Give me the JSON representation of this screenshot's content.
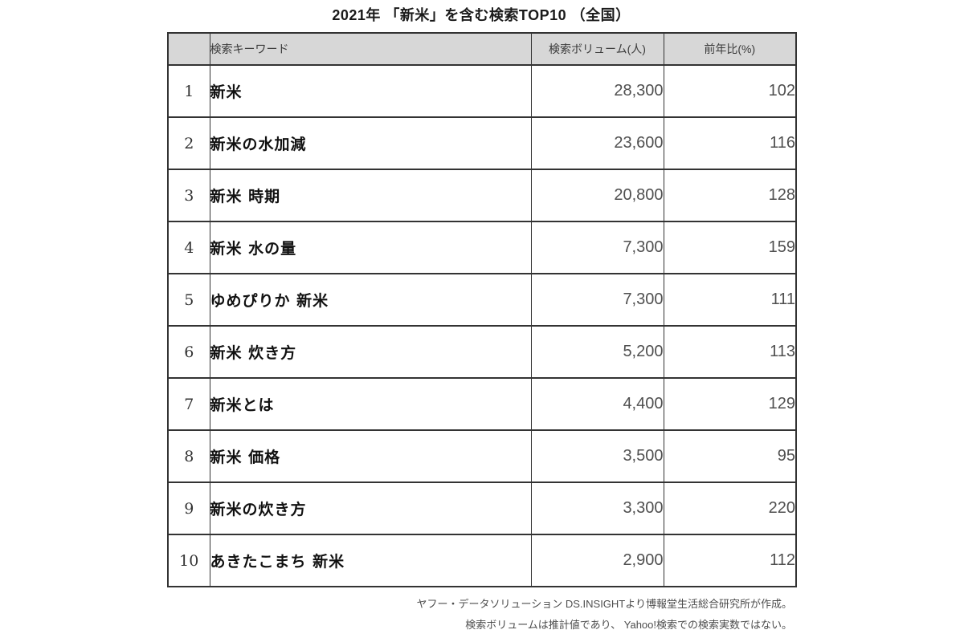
{
  "title": "2021年 「新米」を含む検索TOP10 （全国）",
  "table": {
    "headers": {
      "rank": "",
      "keyword": "検索キーワード",
      "volume": "検索ボリューム(人)",
      "yoy": "前年比(%)"
    },
    "rows": [
      {
        "rank": "1",
        "keyword": "新米",
        "volume": "28,300",
        "yoy": "102"
      },
      {
        "rank": "2",
        "keyword": "新米の水加減",
        "volume": "23,600",
        "yoy": "116"
      },
      {
        "rank": "3",
        "keyword": "新米 時期",
        "volume": "20,800",
        "yoy": "128"
      },
      {
        "rank": "4",
        "keyword": "新米 水の量",
        "volume": "7,300",
        "yoy": "159"
      },
      {
        "rank": "5",
        "keyword": "ゆめぴりか 新米",
        "volume": "7,300",
        "yoy": "111"
      },
      {
        "rank": "6",
        "keyword": "新米 炊き方",
        "volume": "5,200",
        "yoy": "113"
      },
      {
        "rank": "7",
        "keyword": "新米とは",
        "volume": "4,400",
        "yoy": "129"
      },
      {
        "rank": "8",
        "keyword": "新米 価格",
        "volume": "3,500",
        "yoy": "95"
      },
      {
        "rank": "9",
        "keyword": "新米の炊き方",
        "volume": "3,300",
        "yoy": "220"
      },
      {
        "rank": "10",
        "keyword": "あきたこまち 新米",
        "volume": "2,900",
        "yoy": "112"
      }
    ]
  },
  "footer": {
    "line1": "ヤフー・データソリューション DS.INSIGHTより博報堂生活総合研究所が作成。",
    "line2": "検索ボリュームは推計値であり、 Yahoo!検索での検索実数ではない。"
  },
  "colors": {
    "page_bg": "#ffffff",
    "header_bg": "#d7d7d7",
    "border": "#333333",
    "number_text": "#4f4f4f",
    "keyword_text": "#111111"
  },
  "chart_data": {
    "type": "table",
    "title": "2021年 「新米」を含む検索TOP10 （全国）",
    "columns": [
      "",
      "検索キーワード",
      "検索ボリューム(人)",
      "前年比(%)"
    ],
    "rows": [
      [
        1,
        "新米",
        28300,
        102
      ],
      [
        2,
        "新米の水加減",
        23600,
        116
      ],
      [
        3,
        "新米 時期",
        20800,
        128
      ],
      [
        4,
        "新米 水の量",
        7300,
        159
      ],
      [
        5,
        "ゆめぴりか 新米",
        7300,
        111
      ],
      [
        6,
        "新米 炊き方",
        5200,
        113
      ],
      [
        7,
        "新米とは",
        4400,
        129
      ],
      [
        8,
        "新米 価格",
        3500,
        95
      ],
      [
        9,
        "新米の炊き方",
        3300,
        220
      ],
      [
        10,
        "あきたこまち 新米",
        2900,
        112
      ]
    ],
    "source_notes": [
      "ヤフー・データソリューション DS.INSIGHTより博報堂生活総合研究所が作成。",
      "検索ボリュームは推計値であり、 Yahoo!検索での検索実数ではない。"
    ]
  }
}
